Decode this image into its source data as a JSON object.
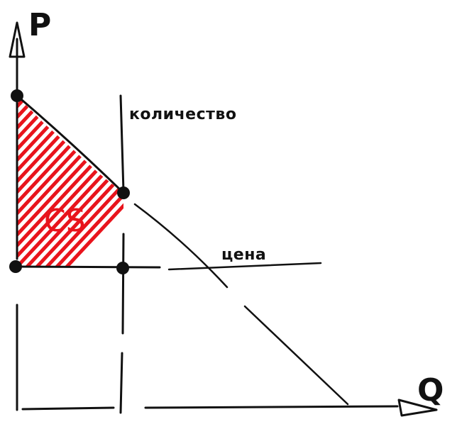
{
  "diagram": {
    "y_axis_label": "P",
    "x_axis_label": "Q",
    "quantity_label": "количество",
    "price_label": "цена",
    "area_label": "CS"
  },
  "colors": {
    "ink": "#111111",
    "surplus": "#e8141c"
  }
}
